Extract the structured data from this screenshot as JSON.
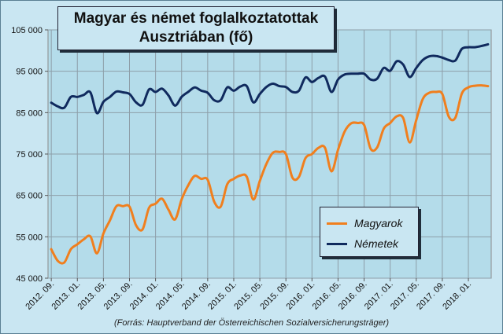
{
  "chart_data": {
    "type": "line",
    "title_line1": "Magyar és német foglalkoztatottak",
    "title_line2": "Ausztriában (fő)",
    "source": "(Forrás: Hauptverband der Österreichischen Sozialversicherungsträger)",
    "ylim": [
      45000,
      105000
    ],
    "yticks": [
      45000,
      55000,
      65000,
      75000,
      85000,
      95000,
      105000
    ],
    "ytick_labels": [
      "45 000",
      "55 000",
      "65 000",
      "75 000",
      "85 000",
      "95 000",
      "105 000"
    ],
    "x_count": 68,
    "xtick_index": [
      0,
      4,
      8,
      12,
      16,
      20,
      24,
      28,
      32,
      36,
      40,
      44,
      48,
      52,
      56,
      60,
      64
    ],
    "xtick_labels": [
      "2012. 09.",
      "2013. 01.",
      "2013. 05.",
      "2013. 09.",
      "2014. 01.",
      "2014. 05.",
      "2014. 09.",
      "2015. 01.",
      "2015. 05.",
      "2015. 09.",
      "2016. 01.",
      "2016. 05.",
      "2016. 09.",
      "2017. 01.",
      "2017. 05.",
      "2017. 09.",
      "2018. 01."
    ],
    "grid": true,
    "legend_position": "bottom-right",
    "series": [
      {
        "name": "Magyarok",
        "color": "#f07f1e",
        "values": [
          52000,
          49200,
          48800,
          52000,
          53200,
          54400,
          55100,
          51000,
          55800,
          59000,
          62400,
          62400,
          62300,
          57800,
          56800,
          62000,
          63000,
          64200,
          61500,
          59200,
          64000,
          67400,
          69700,
          69000,
          68800,
          63500,
          62300,
          67700,
          69000,
          69800,
          69500,
          64000,
          68500,
          72600,
          75300,
          75500,
          75000,
          69300,
          69500,
          74000,
          75000,
          76500,
          76500,
          70800,
          76000,
          80400,
          82400,
          82500,
          82000,
          76300,
          76600,
          81100,
          82500,
          84100,
          83700,
          77800,
          83200,
          88300,
          89800,
          90000,
          89500,
          84000,
          83800,
          89600,
          91100,
          91500,
          91600,
          91400
        ]
      },
      {
        "name": "Németek",
        "color": "#102a5e",
        "values": [
          87400,
          86500,
          86200,
          88800,
          88800,
          89300,
          89900,
          84900,
          87600,
          88800,
          90100,
          89900,
          89500,
          87500,
          86900,
          90600,
          90000,
          90800,
          89100,
          86700,
          88800,
          90000,
          91100,
          90300,
          89800,
          88000,
          88000,
          91100,
          90300,
          91300,
          91400,
          87500,
          89500,
          91200,
          92000,
          91400,
          91200,
          90000,
          90300,
          93500,
          92400,
          93400,
          93700,
          90000,
          93000,
          94200,
          94400,
          94400,
          94400,
          93000,
          93200,
          95800,
          95100,
          97400,
          96600,
          93600,
          95800,
          97700,
          98600,
          98700,
          98300,
          97700,
          97600,
          100400,
          100800,
          100800,
          101100,
          101500
        ]
      }
    ]
  }
}
